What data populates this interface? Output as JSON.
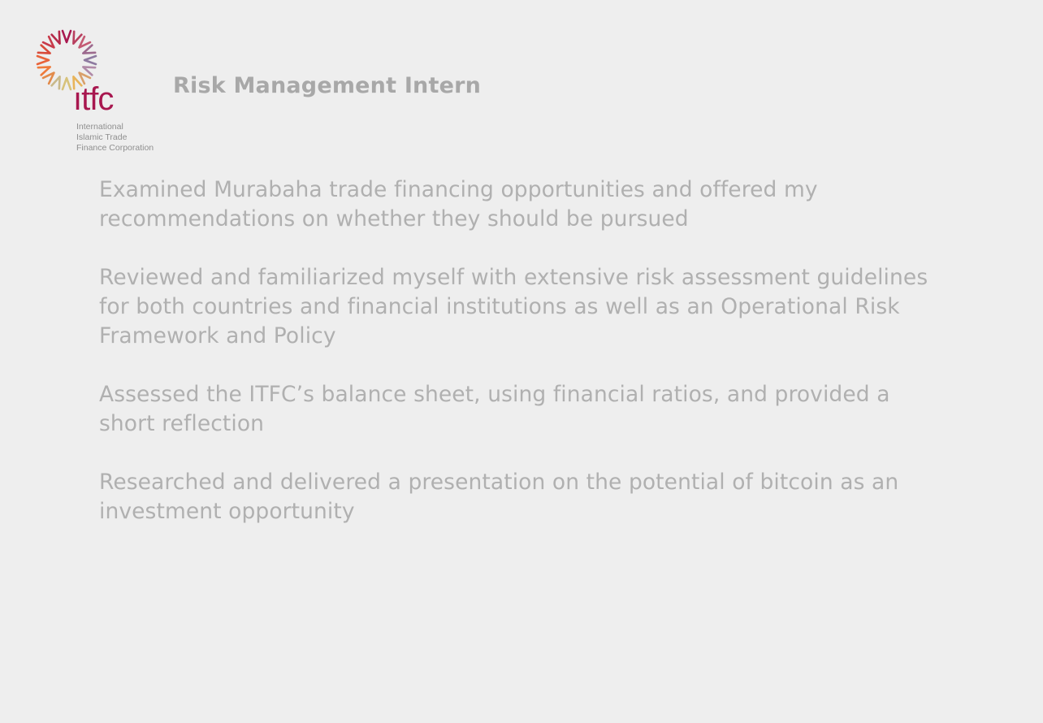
{
  "logo": {
    "name": "logo-itfc",
    "wordmark": "ıtfc",
    "lines": [
      "International",
      "Islamic Trade",
      "Finance Corporation"
    ]
  },
  "title": "Risk Management Intern",
  "bullets": [
    "Examined Murabaha trade financing opportunities and offered my recommendations on whether they should be pursued",
    "Reviewed and familiarized myself with extensive risk assessment guidelines for both countries and financial institutions as well as an Operational Risk Framework and Policy",
    "Assessed the ITFC’s balance sheet, using financial ratios, and provided a short reflection",
    "Researched and delivered a presentation on the potential of bitcoin as an investment opportunity"
  ],
  "colors": {
    "background": "#eeeeee",
    "text": "#b0b0b0",
    "title": "#a8a8a8",
    "brand": "#a8174f"
  }
}
